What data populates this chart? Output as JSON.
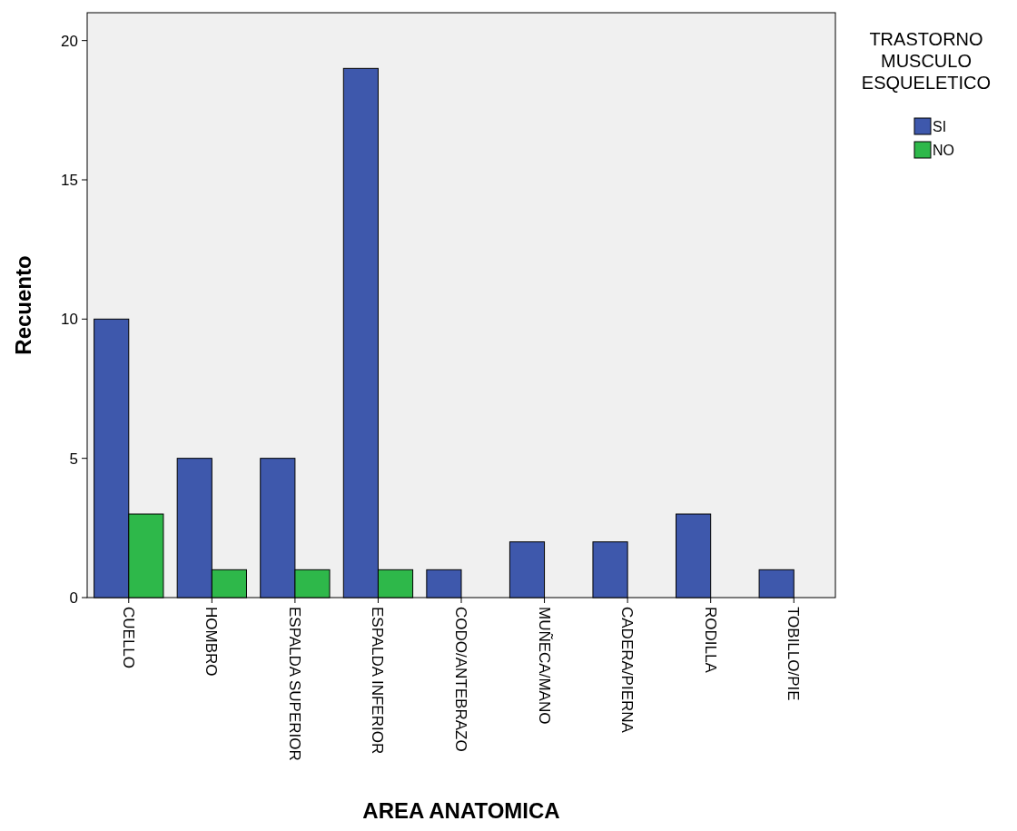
{
  "chart_data": {
    "type": "bar",
    "xlabel": "AREA ANATOMICA",
    "ylabel": "Recuento",
    "legend_title": "TRASTORNO MUSCULO ESQUELETICO",
    "categories": [
      "CUELLO",
      "HOMBRO",
      "ESPALDA SUPERIOR",
      "ESPALDA INFERIOR",
      "CODO/ANTEBRAZO",
      "MUÑECA/MANO",
      "CADERA/PIERNA",
      "RODILLA",
      "TOBILLO/PIE"
    ],
    "series": [
      {
        "name": "SI",
        "color": "#3e58ac",
        "values": [
          10,
          5,
          5,
          19,
          1,
          2,
          2,
          3,
          1
        ]
      },
      {
        "name": "NO",
        "color": "#2eb84a",
        "values": [
          3,
          1,
          1,
          1,
          0,
          0,
          0,
          0,
          0
        ]
      }
    ],
    "ylim": [
      0,
      21
    ],
    "yticks": [
      0,
      5,
      10,
      15,
      20
    ],
    "grid": false,
    "legend": "right"
  }
}
